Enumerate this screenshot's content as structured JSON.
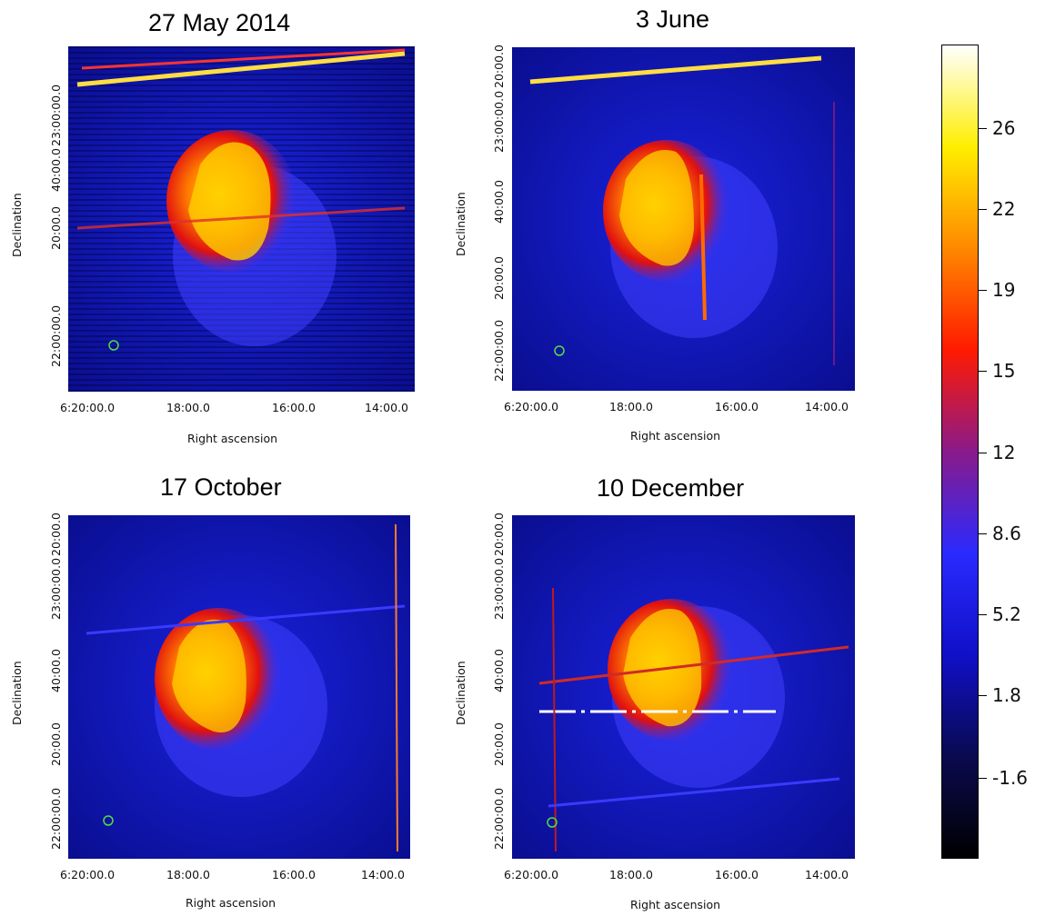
{
  "panels": [
    {
      "title": "27 May 2014",
      "x_label": "Right ascension",
      "y_label": "Declination",
      "x_ticks": [
        "6:20:00.0",
        "18:00.0",
        "16:00.0",
        "14:00.0"
      ],
      "y_ticks": [
        "22:00:00.0",
        "20:00.0",
        "40:00.0",
        "23:00:00.0"
      ]
    },
    {
      "title": "3 June",
      "x_label": "Right ascension",
      "y_label": "Declination",
      "x_ticks": [
        "6:20:00.0",
        "18:00.0",
        "16:00.0",
        "14:00.0"
      ],
      "y_ticks": [
        "22:00:00.0",
        "20:00.0",
        "40:00.0",
        "23:00:00.0",
        "20:00.0"
      ]
    },
    {
      "title": "17 October",
      "x_label": "Right ascension",
      "y_label": "Declination",
      "x_ticks": [
        "6:20:00.0",
        "18:00.0",
        "16:00.0",
        "14:00.0"
      ],
      "y_ticks": [
        "22:00:00.0",
        "20:00.0",
        "40:00.0",
        "23:00:00.0",
        "20:00.0"
      ]
    },
    {
      "title": "10 December",
      "x_label": "Right ascension",
      "y_label": "Declination",
      "x_ticks": [
        "6:20:00.0",
        "18:00.0",
        "16:00.0",
        "14:00.0"
      ],
      "y_ticks": [
        "22:00:00.0",
        "20:00.0",
        "40:00.0",
        "23:00:00.0",
        "20:00.0"
      ]
    }
  ],
  "colorbar": {
    "labels": [
      "26",
      "22",
      "19",
      "15",
      "12",
      "8.6",
      "5.2",
      "1.8",
      "-1.6"
    ],
    "colors": [
      "#000000",
      "#0a0a50",
      "#1010c8",
      "#2a2aff",
      "#8a1a8a",
      "#ff1a00",
      "#ff8800",
      "#ffee00",
      "#ffffff"
    ]
  }
}
